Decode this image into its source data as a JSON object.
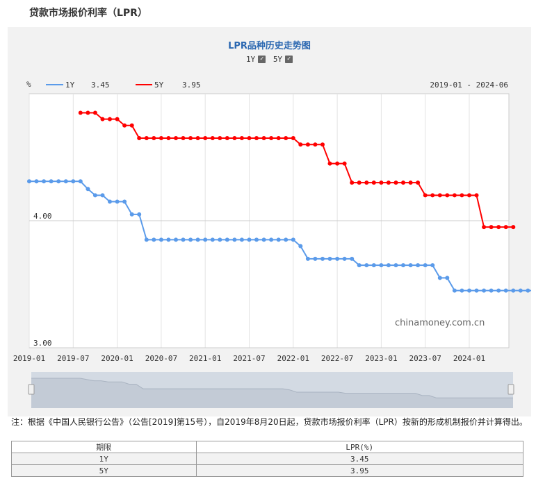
{
  "page_title": "贷款市场报价利率（LPR）",
  "chart_title": "LPR品种历史走势图",
  "toggles": [
    {
      "label": "1Y",
      "checked": true
    },
    {
      "label": "5Y",
      "checked": true
    }
  ],
  "legend": {
    "unit": "%",
    "items": [
      {
        "name": "1Y",
        "value": "3.45",
        "color": "#5b9bea"
      },
      {
        "name": "5Y",
        "value": "3.95",
        "color": "#ff0000"
      }
    ],
    "range": "2019-01 - 2024-06"
  },
  "watermark": "chinamoney.com.cn",
  "chart_data": {
    "type": "line",
    "x_ticks": [
      "2019-01",
      "2019-07",
      "2020-01",
      "2020-07",
      "2021-01",
      "2021-07",
      "2022-01",
      "2022-07",
      "2023-01",
      "2023-07",
      "2024-01"
    ],
    "y_ticks": [
      "4.00",
      "3.00"
    ],
    "ylim": [
      3.0,
      5.0
    ],
    "series": [
      {
        "name": "1Y",
        "color": "#5b9bea",
        "start": "2019-01",
        "values": [
          4.31,
          4.31,
          4.31,
          4.31,
          4.31,
          4.31,
          4.31,
          4.31,
          4.25,
          4.2,
          4.2,
          4.15,
          4.15,
          4.15,
          4.05,
          4.05,
          3.85,
          3.85,
          3.85,
          3.85,
          3.85,
          3.85,
          3.85,
          3.85,
          3.85,
          3.85,
          3.85,
          3.85,
          3.85,
          3.85,
          3.85,
          3.85,
          3.85,
          3.85,
          3.85,
          3.85,
          3.85,
          3.8,
          3.7,
          3.7,
          3.7,
          3.7,
          3.7,
          3.7,
          3.7,
          3.65,
          3.65,
          3.65,
          3.65,
          3.65,
          3.65,
          3.65,
          3.65,
          3.65,
          3.65,
          3.65,
          3.55,
          3.55,
          3.45,
          3.45,
          3.45,
          3.45,
          3.45,
          3.45,
          3.45,
          3.45,
          3.45,
          3.45,
          3.45,
          3.45
        ]
      },
      {
        "name": "5Y",
        "color": "#ff0000",
        "start": "2019-08",
        "values": [
          4.85,
          4.85,
          4.85,
          4.8,
          4.8,
          4.8,
          4.75,
          4.75,
          4.65,
          4.65,
          4.65,
          4.65,
          4.65,
          4.65,
          4.65,
          4.65,
          4.65,
          4.65,
          4.65,
          4.65,
          4.65,
          4.65,
          4.65,
          4.65,
          4.65,
          4.65,
          4.65,
          4.65,
          4.65,
          4.65,
          4.6,
          4.6,
          4.6,
          4.6,
          4.45,
          4.45,
          4.45,
          4.3,
          4.3,
          4.3,
          4.3,
          4.3,
          4.3,
          4.3,
          4.3,
          4.3,
          4.3,
          4.2,
          4.2,
          4.2,
          4.2,
          4.2,
          4.2,
          4.2,
          4.2,
          3.95,
          3.95,
          3.95,
          3.95,
          3.95
        ]
      }
    ]
  },
  "note": "注：根据《中国人民银行公告》（公告[2019]第15号），自2019年8月20日起，贷款市场报价利率（LPR）按新的形成机制报价并计算得出。",
  "table": {
    "headers": [
      "期限",
      "LPR(%)"
    ],
    "rows": [
      {
        "term": "1Y",
        "rate": "3.45"
      },
      {
        "term": "5Y",
        "rate": "3.95"
      }
    ]
  }
}
